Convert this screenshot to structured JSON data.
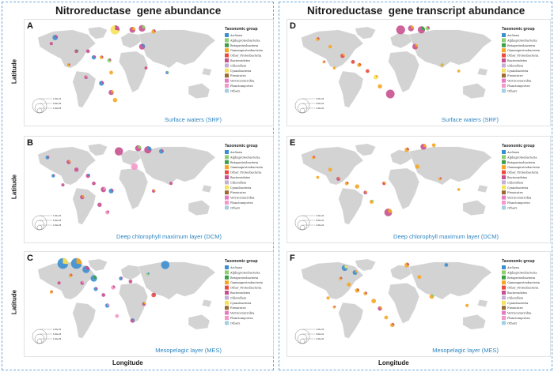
{
  "headings": {
    "left": "Nitroreductase  gene abundance",
    "right": "Nitroreductase  gene transcript abundance"
  },
  "axes": {
    "latitude": "Latitude",
    "longitude": "Longitude"
  },
  "legend": {
    "title": "Taxonomic group",
    "items": [
      {
        "label": "Archaea",
        "color": "#3b8fd0"
      },
      {
        "label": "Alphaproteobacteria",
        "color": "#8fce70"
      },
      {
        "label": "Betaproteobacteria",
        "color": "#3aa048"
      },
      {
        "label": "Gammaproteobacteria",
        "color": "#f5a623"
      },
      {
        "label": "Other_Proteobacteria",
        "color": "#e94b3c"
      },
      {
        "label": "Bacteroidetes",
        "color": "#c8508f"
      },
      {
        "label": "Chloroflexi",
        "color": "#c5b0d5"
      },
      {
        "label": "Cyanobacteria",
        "color": "#f5e25a"
      },
      {
        "label": "Firmicutes",
        "color": "#9b6a2f"
      },
      {
        "label": "Verrucomicrobia",
        "color": "#e87ac0"
      },
      {
        "label": "Planctomycetes",
        "color": "#f398c8"
      },
      {
        "label": "Others",
        "color": "#a6cee3"
      }
    ]
  },
  "panels": [
    {
      "letter": "A",
      "region": "Surface waters (SRF)"
    },
    {
      "letter": "B",
      "region": "Deep chlorophyll maximum layer (DCM)"
    },
    {
      "letter": "C",
      "region": "Mesopelagic layer (MES)"
    },
    {
      "letter": "D",
      "region": "Surface waters (SRF)"
    },
    {
      "letter": "E",
      "region": "Deep chlorophyll maximum layer (DCM)"
    },
    {
      "letter": "F",
      "region": "Mesopelagic layer (MES)"
    }
  ],
  "size_scale": {
    "left": [
      "1.00e-04",
      "5.00e-05",
      "1.00e-05"
    ],
    "right": [
      "1.00e-03",
      "5.00e-04",
      "1.00e-04"
    ]
  },
  "colors": {
    "land": "#d3d3d3",
    "panel_bg": "#ffffff",
    "frame": "#6fa8dc",
    "region_text": "#2e86c1"
  }
}
